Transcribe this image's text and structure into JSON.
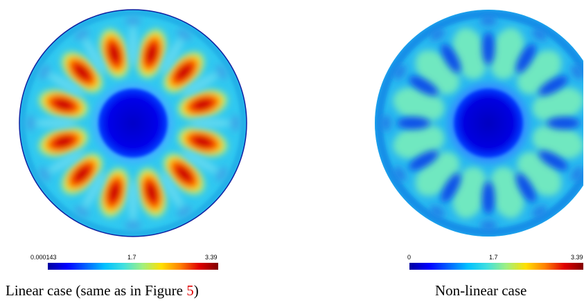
{
  "colormap": [
    "#0000a0",
    "#0000ff",
    "#0060ff",
    "#00c0ff",
    "#40e0e0",
    "#a0f080",
    "#ffe000",
    "#ff8000",
    "#e00000",
    "#800000"
  ],
  "panels": [
    {
      "id": "linear",
      "colorbar": {
        "min": "0.000143",
        "mid": "1.7",
        "max": "3.39"
      },
      "caption": {
        "text": "Linear case (same as in Figure ",
        "ref": "5",
        "close": ")"
      }
    },
    {
      "id": "nonlinear",
      "colorbar": {
        "min": "0",
        "mid": "1.7",
        "max": "3.39"
      },
      "caption": {
        "text": "Non-linear case"
      }
    }
  ]
}
